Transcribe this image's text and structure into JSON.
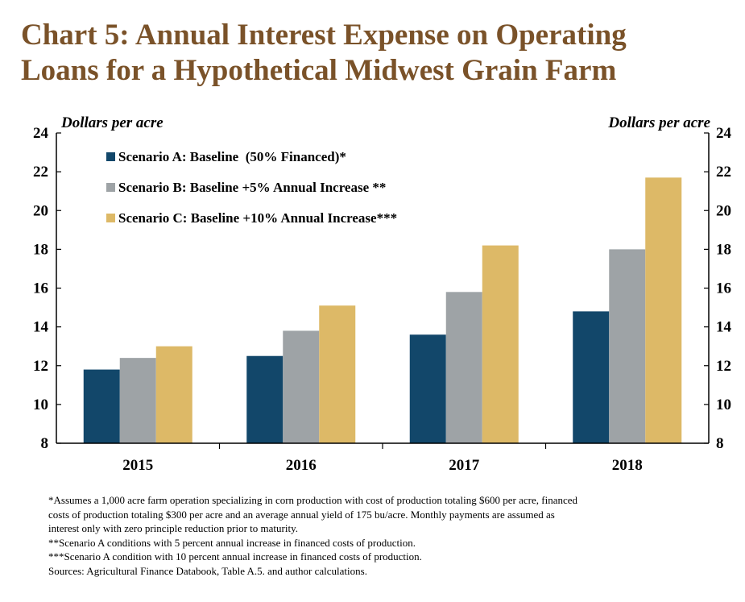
{
  "title_lines": [
    "Chart 5: Annual Interest Expense on Operating",
    "Loans for a Hypothetical Midwest Grain Farm"
  ],
  "chart_data": {
    "type": "bar",
    "title": "Chart 5: Annual Interest Expense on Operating Loans for a Hypothetical Midwest Grain Farm",
    "ylabel_left": "Dollars per acre",
    "ylabel_right": "Dollars per acre",
    "categories": [
      "2015",
      "2016",
      "2017",
      "2018"
    ],
    "ylim": [
      8,
      24
    ],
    "yticks": [
      8,
      10,
      12,
      14,
      16,
      18,
      20,
      22,
      24
    ],
    "ytick_labels": [
      "8",
      "10",
      "12",
      "14",
      "16",
      "18",
      "20",
      "22",
      "24"
    ],
    "grid": false,
    "legend_position": "top-left",
    "series": [
      {
        "name": "Scenario A: Baseline  (50% Financed)*",
        "color": "#12476a",
        "values": [
          11.8,
          12.5,
          13.6,
          14.8
        ]
      },
      {
        "name": "Scenario B: Baseline +5% Annual Increase **",
        "color": "#9ea3a6",
        "values": [
          12.4,
          13.8,
          15.8,
          18.0
        ]
      },
      {
        "name": "Scenario C: Baseline +10% Annual Increase***",
        "color": "#ddb967",
        "values": [
          13.0,
          15.1,
          18.2,
          21.7
        ]
      }
    ]
  },
  "footnotes": [
    "*Assumes a 1,000 acre farm operation specializing in corn production with cost of production totaling $600 per acre, financed",
    "costs of production totaling $300 per acre and an average annual yield of 175 bu/acre. Monthly payments are assumed as",
    "interest only with zero principle reduction prior to maturity.",
    "**Scenario A conditions with 5 percent annual increase in financed costs of production.",
    "***Scenario A condition with 10 percent annual increase in financed costs of production.",
    "Sources: Agricultural Finance Databook, Table A.5. and author calculations."
  ]
}
